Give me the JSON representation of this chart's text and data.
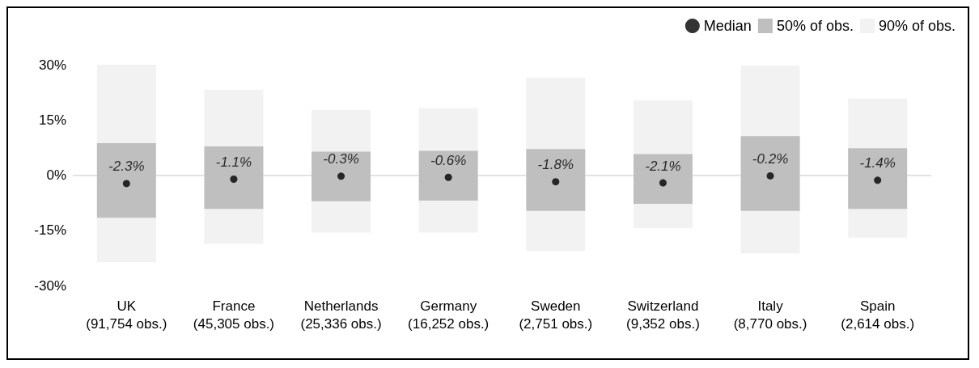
{
  "chart_data": {
    "type": "bar",
    "categories": [
      "UK\n(91,754 obs.)",
      "France\n(45,305 obs.)",
      "Netherlands\n(25,336 obs.)",
      "Germany\n(16,252 obs.)",
      "Sweden\n(2,751 obs.)",
      "Switzerland\n(9,352 obs.)",
      "Italy\n(8,770 obs.)",
      "Spain\n(2,614 obs.)"
    ],
    "series": [
      {
        "name": "90% of obs.",
        "color": "#f2f2f2",
        "base": [
          -23.6,
          -18.7,
          -15.6,
          -15.6,
          -20.6,
          -14.4,
          -21.3,
          -17.0
        ],
        "values": [
          53.6,
          41.9,
          33.3,
          33.8,
          47.1,
          34.7,
          51.1,
          37.8
        ]
      },
      {
        "name": "50% of obs.",
        "color": "#bfbfbf",
        "base": [
          -11.6,
          -9.2,
          -7.1,
          -6.9,
          -9.7,
          -7.8,
          -9.7,
          -9.2
        ],
        "values": [
          20.3,
          17.0,
          13.5,
          13.5,
          16.8,
          13.5,
          20.3,
          16.5
        ]
      },
      {
        "name": "Median",
        "type": "scatter",
        "color": "#000000",
        "marker": "circle",
        "values": [
          -2.3,
          -1.1,
          -0.3,
          -0.6,
          -1.8,
          -2.1,
          -0.2,
          -1.4
        ],
        "value_labels": [
          "-2.3%",
          "-1.1%",
          "-0.3%",
          "-0.6%",
          "-1.8%",
          "-2.1%",
          "-0.2%",
          "-1.4%"
        ]
      }
    ],
    "ylim": [
      -30,
      30
    ],
    "yticks": [
      {
        "value": -30,
        "label": "-30%"
      },
      {
        "value": -15,
        "label": "-15%"
      },
      {
        "value": 0,
        "label": "0%"
      },
      {
        "value": 15,
        "label": "15%"
      },
      {
        "value": 30,
        "label": "30%"
      }
    ],
    "ref_lines": [
      {
        "axis": "y",
        "value": 0,
        "color": "#d9d9d9"
      }
    ],
    "grid": false,
    "legend": "top right"
  }
}
